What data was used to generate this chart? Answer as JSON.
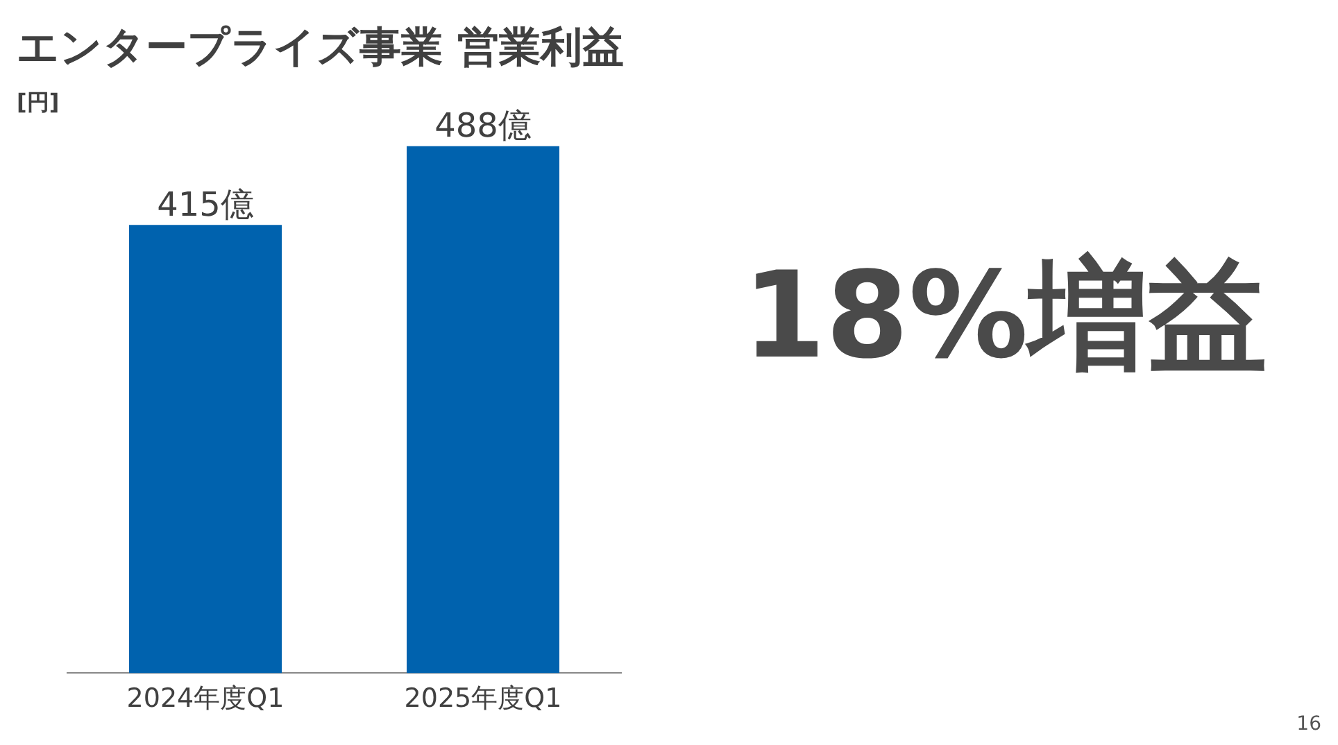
{
  "chart_data": {
    "type": "bar",
    "title": "エンタープライズ事業 営業利益",
    "ylabel": "[円]",
    "categories": [
      "2024年度Q1",
      "2025年度Q1"
    ],
    "values": [
      415,
      488
    ],
    "value_labels": [
      "415億",
      "488億"
    ],
    "color": "#0062ae",
    "tick_labels": "x",
    "grid": false,
    "legend": false,
    "annotations": [
      "18%増益",
      "16"
    ]
  }
}
